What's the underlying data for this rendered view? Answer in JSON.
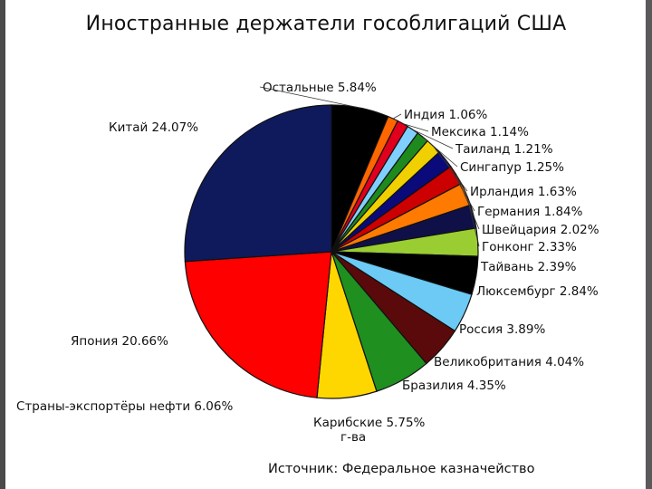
{
  "chart_data": {
    "type": "pie",
    "title": "Иностранные держатели гособлигаций США",
    "source": "Источник: Федеральное казначейство",
    "slices": [
      {
        "label": "Остальные",
        "pct": "5.84%",
        "value": 5.84,
        "color": "#000000"
      },
      {
        "label": "Индия",
        "pct": "1.06%",
        "value": 1.06,
        "color": "#ff6600"
      },
      {
        "label": "Мексика",
        "pct": "1.14%",
        "value": 1.14,
        "color": "#e0001e"
      },
      {
        "label": "Таиланд",
        "pct": "1.21%",
        "value": 1.21,
        "color": "#7fd0ff"
      },
      {
        "label": "Сингапур",
        "pct": "1.25%",
        "value": 1.25,
        "color": "#1e8a1e"
      },
      {
        "label": "Ирландия",
        "pct": "1.63%",
        "value": 1.63,
        "color": "#f0d000"
      },
      {
        "label": "Германия",
        "pct": "1.84%",
        "value": 1.84,
        "color": "#0a0a7a"
      },
      {
        "label": "Швейцария",
        "pct": "2.02%",
        "value": 2.02,
        "color": "#cc0000"
      },
      {
        "label": "Гонконг",
        "pct": "2.33%",
        "value": 2.33,
        "color": "#ff7a00"
      },
      {
        "label": "Тайвань",
        "pct": "2.39%",
        "value": 2.39,
        "color": "#101048"
      },
      {
        "label": "Люксембург",
        "pct": "2.84%",
        "value": 2.84,
        "color": "#9acd32"
      },
      {
        "label": "Россия",
        "pct": "3.89%",
        "value": 3.89,
        "color": "#000000"
      },
      {
        "label": "Великобритания",
        "pct": "4.04%",
        "value": 4.04,
        "color": "#6ccaf5"
      },
      {
        "label": "Бразилия",
        "pct": "4.35%",
        "value": 4.35,
        "color": "#5a0a0a"
      },
      {
        "label": "Карибские г-ва",
        "pct": "5.75%",
        "value": 5.75,
        "color": "#1f8f1f"
      },
      {
        "label": "Страны-экспортёры нефти",
        "pct": "6.06%",
        "value": 6.06,
        "color": "#ffd700"
      },
      {
        "label": "Япония",
        "pct": "20.66%",
        "value": 20.66,
        "color": "#ff0000"
      },
      {
        "label": "Китай",
        "pct": "24.07%",
        "value": 24.07,
        "color": "#0f1a5c"
      }
    ]
  }
}
